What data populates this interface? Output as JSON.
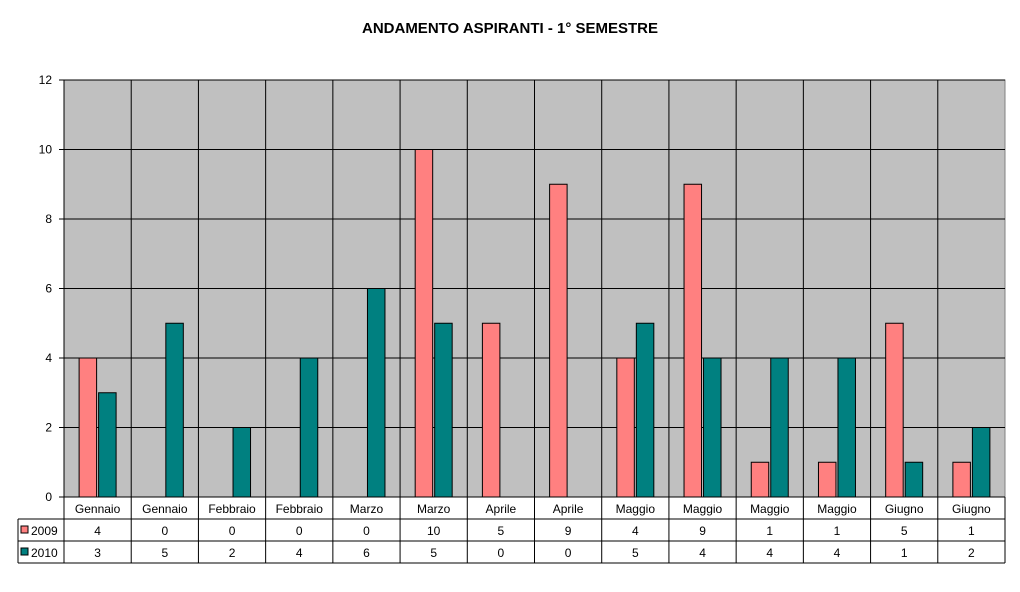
{
  "chart_data": {
    "type": "bar",
    "title": "ANDAMENTO ASPIRANTI - 1° SEMESTRE",
    "categories": [
      "Gennaio",
      "Gennaio",
      "Febbraio",
      "Febbraio",
      "Marzo",
      "Marzo",
      "Aprile",
      "Aprile",
      "Maggio",
      "Maggio",
      "Maggio",
      "Maggio",
      "Giugno",
      "Giugno"
    ],
    "series": [
      {
        "name": "2009",
        "values": [
          4,
          0,
          0,
          0,
          0,
          10,
          5,
          9,
          4,
          9,
          1,
          1,
          5,
          1
        ],
        "color": "#ff8080"
      },
      {
        "name": "2010",
        "values": [
          3,
          5,
          2,
          4,
          6,
          5,
          0,
          0,
          5,
          4,
          4,
          4,
          1,
          2
        ],
        "color": "#008080"
      }
    ],
    "ylim": [
      0,
      12
    ],
    "yticks": [
      "0",
      "2",
      "4",
      "6",
      "8",
      "10",
      "12"
    ],
    "grid": true,
    "plot_background": "#c0c0c0",
    "legend": "data-table"
  }
}
